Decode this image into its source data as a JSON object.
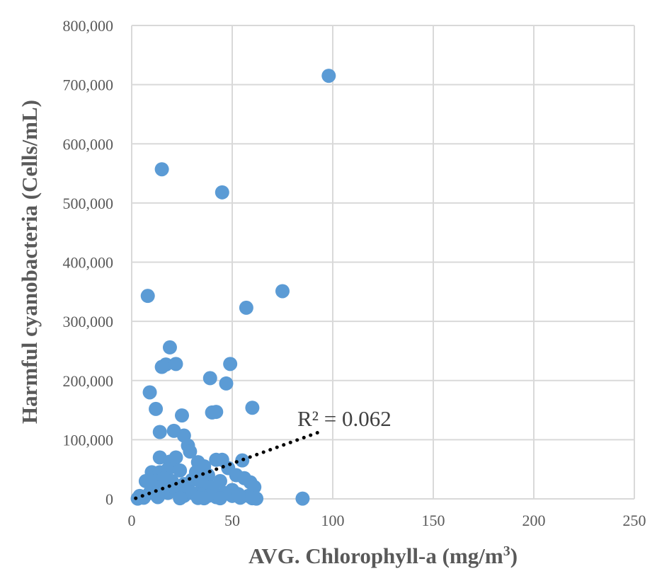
{
  "chart_data": {
    "type": "scatter",
    "title": "",
    "xlabel": "AVG. Chlorophyll-a (mg/m",
    "xlabel_sup": "3",
    "xlabel_end": ")",
    "ylabel": "Harmful cyanobacteria (Cells/mL)",
    "xlim": [
      0,
      250
    ],
    "ylim": [
      0,
      800000
    ],
    "x_ticks": [
      0,
      50,
      100,
      150,
      200,
      250
    ],
    "y_ticks": [
      0,
      100000,
      200000,
      300000,
      400000,
      500000,
      600000,
      700000,
      800000
    ],
    "x_tick_labels": [
      "0",
      "50",
      "100",
      "150",
      "200",
      "250"
    ],
    "y_tick_labels": [
      "0",
      "100,000",
      "200,000",
      "300,000",
      "400,000",
      "500,000",
      "600,000",
      "700,000",
      "800,000"
    ],
    "grid": true,
    "series": [
      {
        "name": "Harmful cyanobacteria",
        "color": "#5b9bd5",
        "points": [
          [
            98,
            715000
          ],
          [
            15,
            557000
          ],
          [
            45,
            518000
          ],
          [
            8,
            343000
          ],
          [
            75,
            351000
          ],
          [
            57,
            323000
          ],
          [
            19,
            256000
          ],
          [
            15,
            223000
          ],
          [
            17,
            227000
          ],
          [
            22,
            228000
          ],
          [
            49,
            228000
          ],
          [
            39,
            204000
          ],
          [
            47,
            195000
          ],
          [
            9,
            180000
          ],
          [
            12,
            152000
          ],
          [
            60,
            154000
          ],
          [
            25,
            141000
          ],
          [
            40,
            146000
          ],
          [
            42,
            147000
          ],
          [
            14,
            113000
          ],
          [
            21,
            115000
          ],
          [
            26,
            107000
          ],
          [
            28,
            90000
          ],
          [
            29,
            80000
          ],
          [
            14,
            70000
          ],
          [
            22,
            70000
          ],
          [
            19,
            63000
          ],
          [
            33,
            62000
          ],
          [
            42,
            66000
          ],
          [
            45,
            66000
          ],
          [
            55,
            65000
          ],
          [
            36,
            55000
          ],
          [
            48,
            52000
          ],
          [
            10,
            45000
          ],
          [
            14,
            45000
          ],
          [
            18,
            50000
          ],
          [
            24,
            48000
          ],
          [
            32,
            45000
          ],
          [
            38,
            40000
          ],
          [
            52,
            40000
          ],
          [
            56,
            35000
          ],
          [
            59,
            28000
          ],
          [
            61,
            20000
          ],
          [
            7,
            30000
          ],
          [
            12,
            30000
          ],
          [
            16,
            35000
          ],
          [
            20,
            30000
          ],
          [
            26,
            25000
          ],
          [
            30,
            32000
          ],
          [
            35,
            25000
          ],
          [
            40,
            20000
          ],
          [
            44,
            30000
          ],
          [
            50,
            15000
          ],
          [
            4,
            5000
          ],
          [
            6,
            2000
          ],
          [
            9,
            10000
          ],
          [
            11,
            15000
          ],
          [
            15,
            20000
          ],
          [
            18,
            10000
          ],
          [
            22,
            15000
          ],
          [
            26,
            5000
          ],
          [
            30,
            10000
          ],
          [
            34,
            8000
          ],
          [
            38,
            5000
          ],
          [
            42,
            3000
          ],
          [
            46,
            10000
          ],
          [
            50,
            5000
          ],
          [
            54,
            2000
          ],
          [
            58,
            5000
          ],
          [
            62,
            500
          ],
          [
            3,
            500
          ],
          [
            13,
            3000
          ],
          [
            24,
            1000
          ],
          [
            33,
            1500
          ],
          [
            36,
            1000
          ],
          [
            44,
            1000
          ],
          [
            53,
            8000
          ],
          [
            60,
            1000
          ],
          [
            85,
            500
          ]
        ]
      }
    ],
    "trendline": {
      "type": "linear",
      "x_range": [
        2,
        95
      ],
      "y_range": [
        1000,
        115000
      ],
      "label": "R² = 0.062"
    }
  }
}
